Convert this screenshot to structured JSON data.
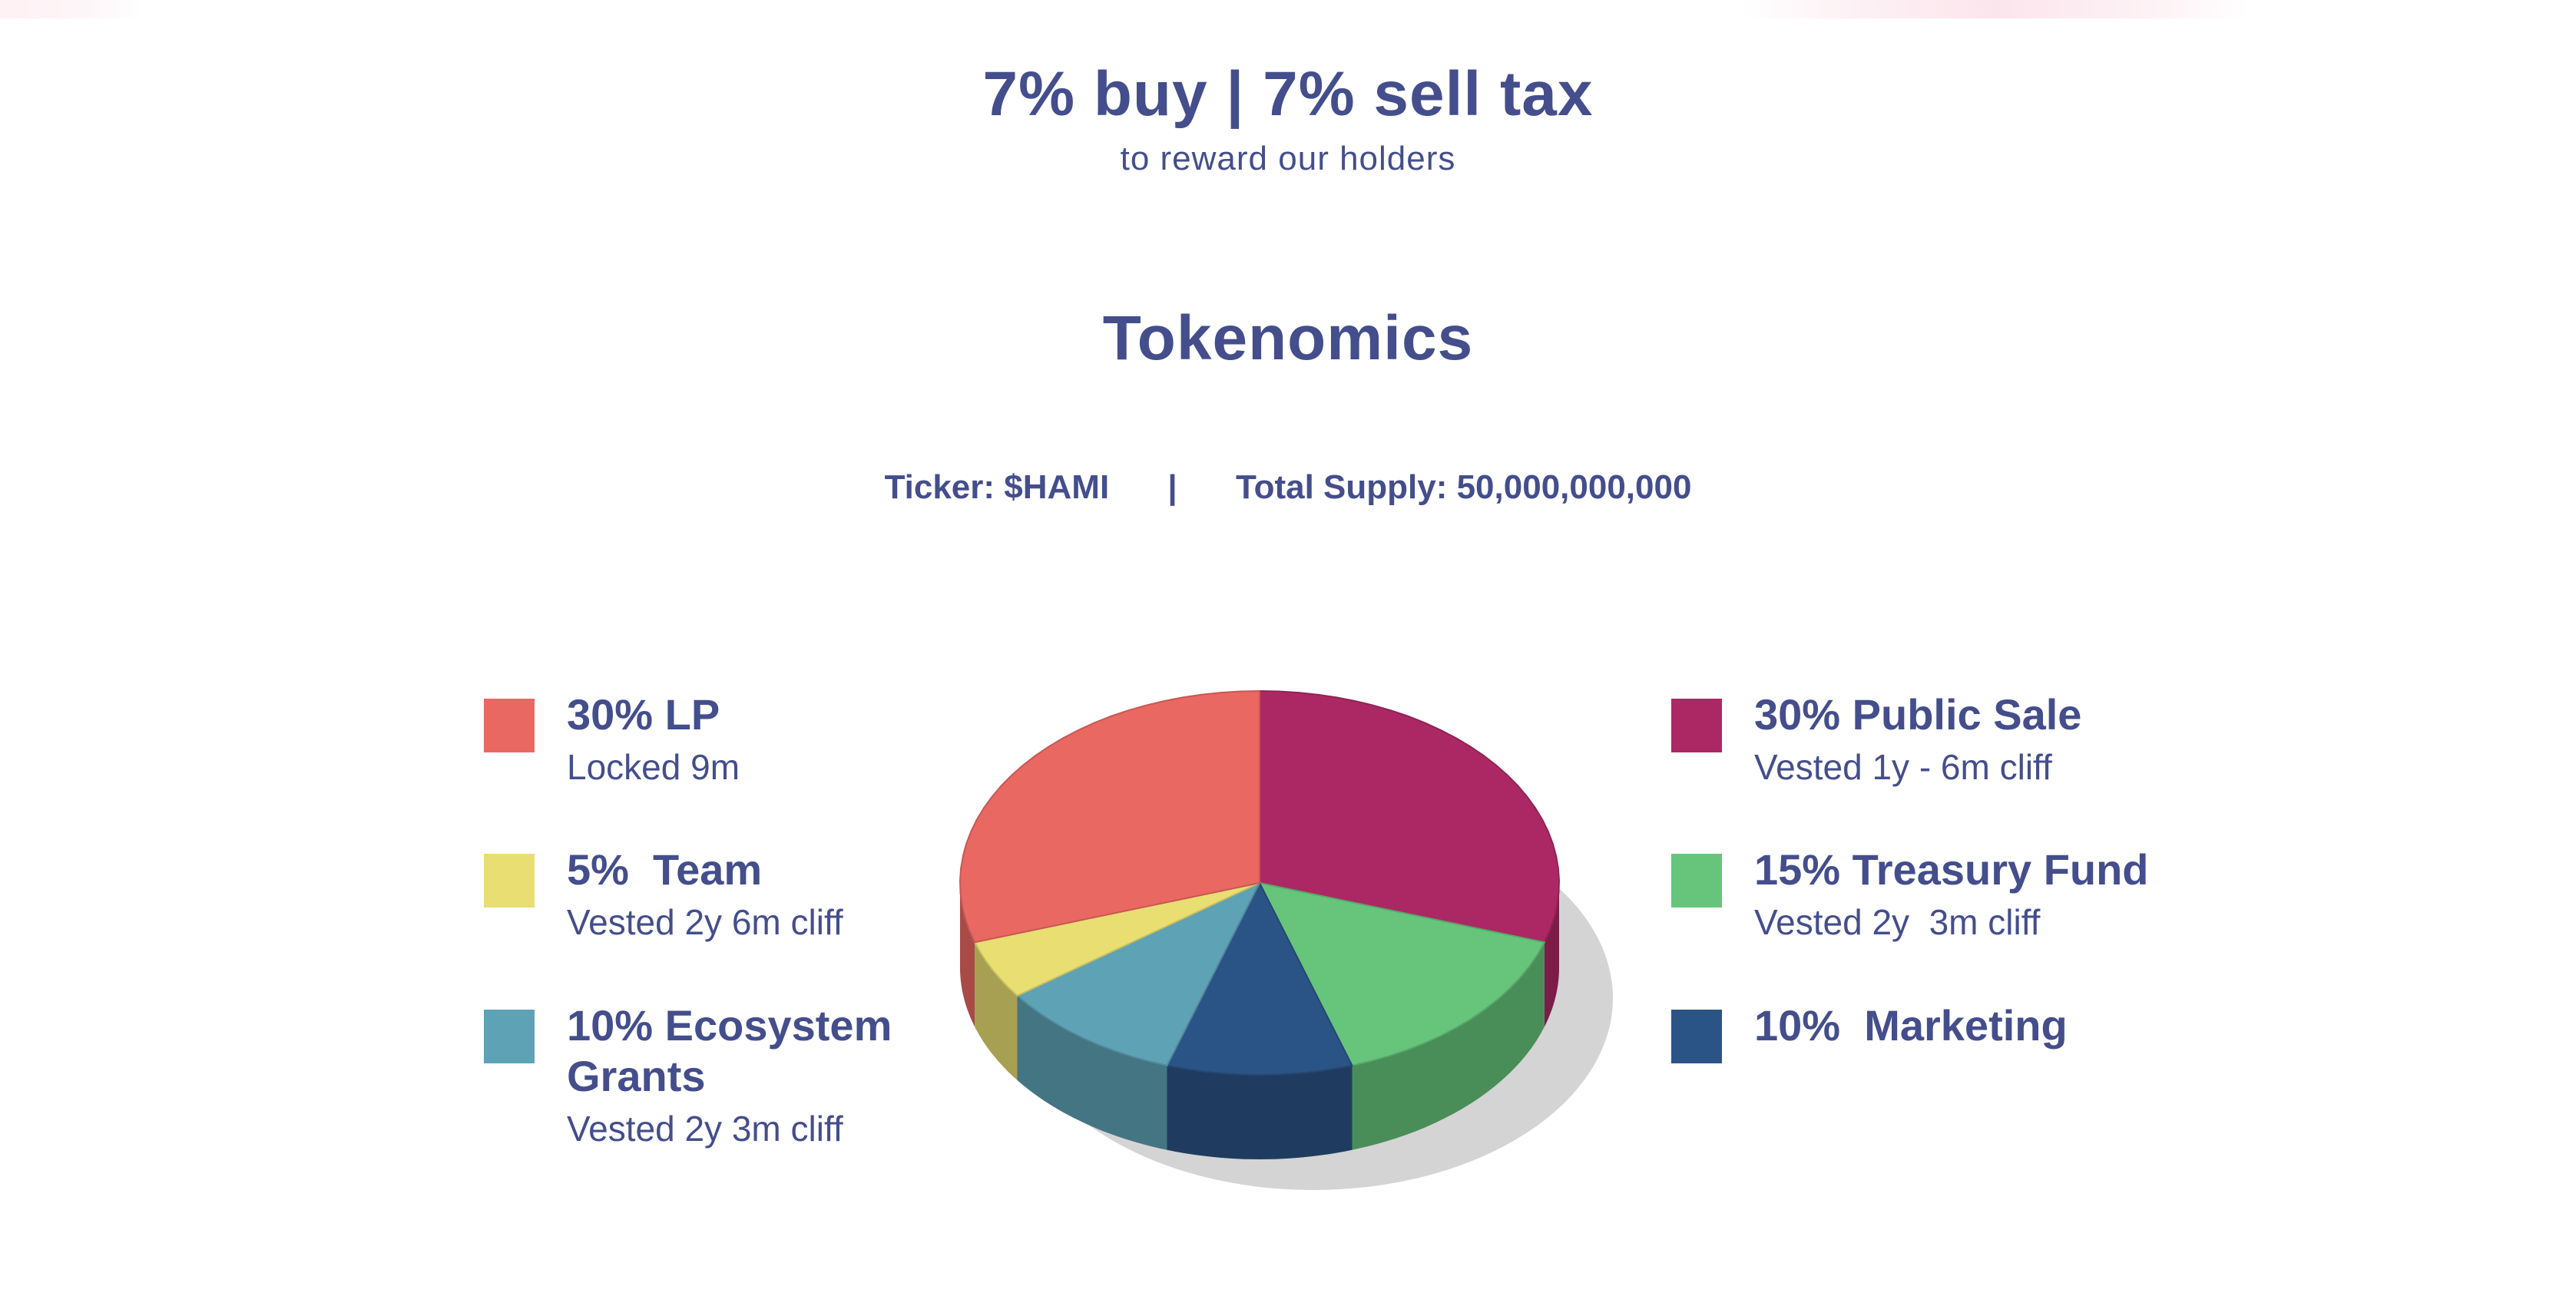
{
  "tax": {
    "title": "7% buy | 7% sell tax",
    "subtitle": "to reward our holders"
  },
  "tokenomics": {
    "title": "Tokenomics",
    "ticker": "Ticker: $HAMI",
    "separator": "|",
    "supply": "Total Supply: 50,000,000,000"
  },
  "legend": {
    "lp": {
      "label": "30% LP",
      "note": "Locked 9m",
      "color": "#ea6862"
    },
    "team": {
      "label": "5%  Team",
      "note": "Vested 2y 6m cliff",
      "color": "#e8de72"
    },
    "ecosystem": {
      "label_line1": "10% Ecosystem",
      "label_line2": "Grants",
      "note": "Vested 2y 3m cliff",
      "color": "#5ea2b6"
    },
    "public_sale": {
      "label": "30% Public Sale",
      "note": "Vested 1y - 6m cliff",
      "color": "#ac2864"
    },
    "treasury": {
      "label": "15% Treasury Fund",
      "note": "Vested 2y  3m cliff",
      "color": "#66c57a"
    },
    "marketing": {
      "label": "10%  Marketing",
      "color": "#2b5486"
    }
  },
  "chart_data": {
    "type": "pie",
    "title": "Tokenomics",
    "categories": [
      "Public Sale",
      "Treasury Fund",
      "Marketing",
      "Ecosystem Grants",
      "Team",
      "LP"
    ],
    "values": [
      30,
      15,
      10,
      10,
      5,
      30
    ],
    "colors": [
      "#ac2864",
      "#66c57a",
      "#2b5486",
      "#5ea2b6",
      "#e8de72",
      "#ea6862"
    ],
    "style": "3d-pixel"
  }
}
